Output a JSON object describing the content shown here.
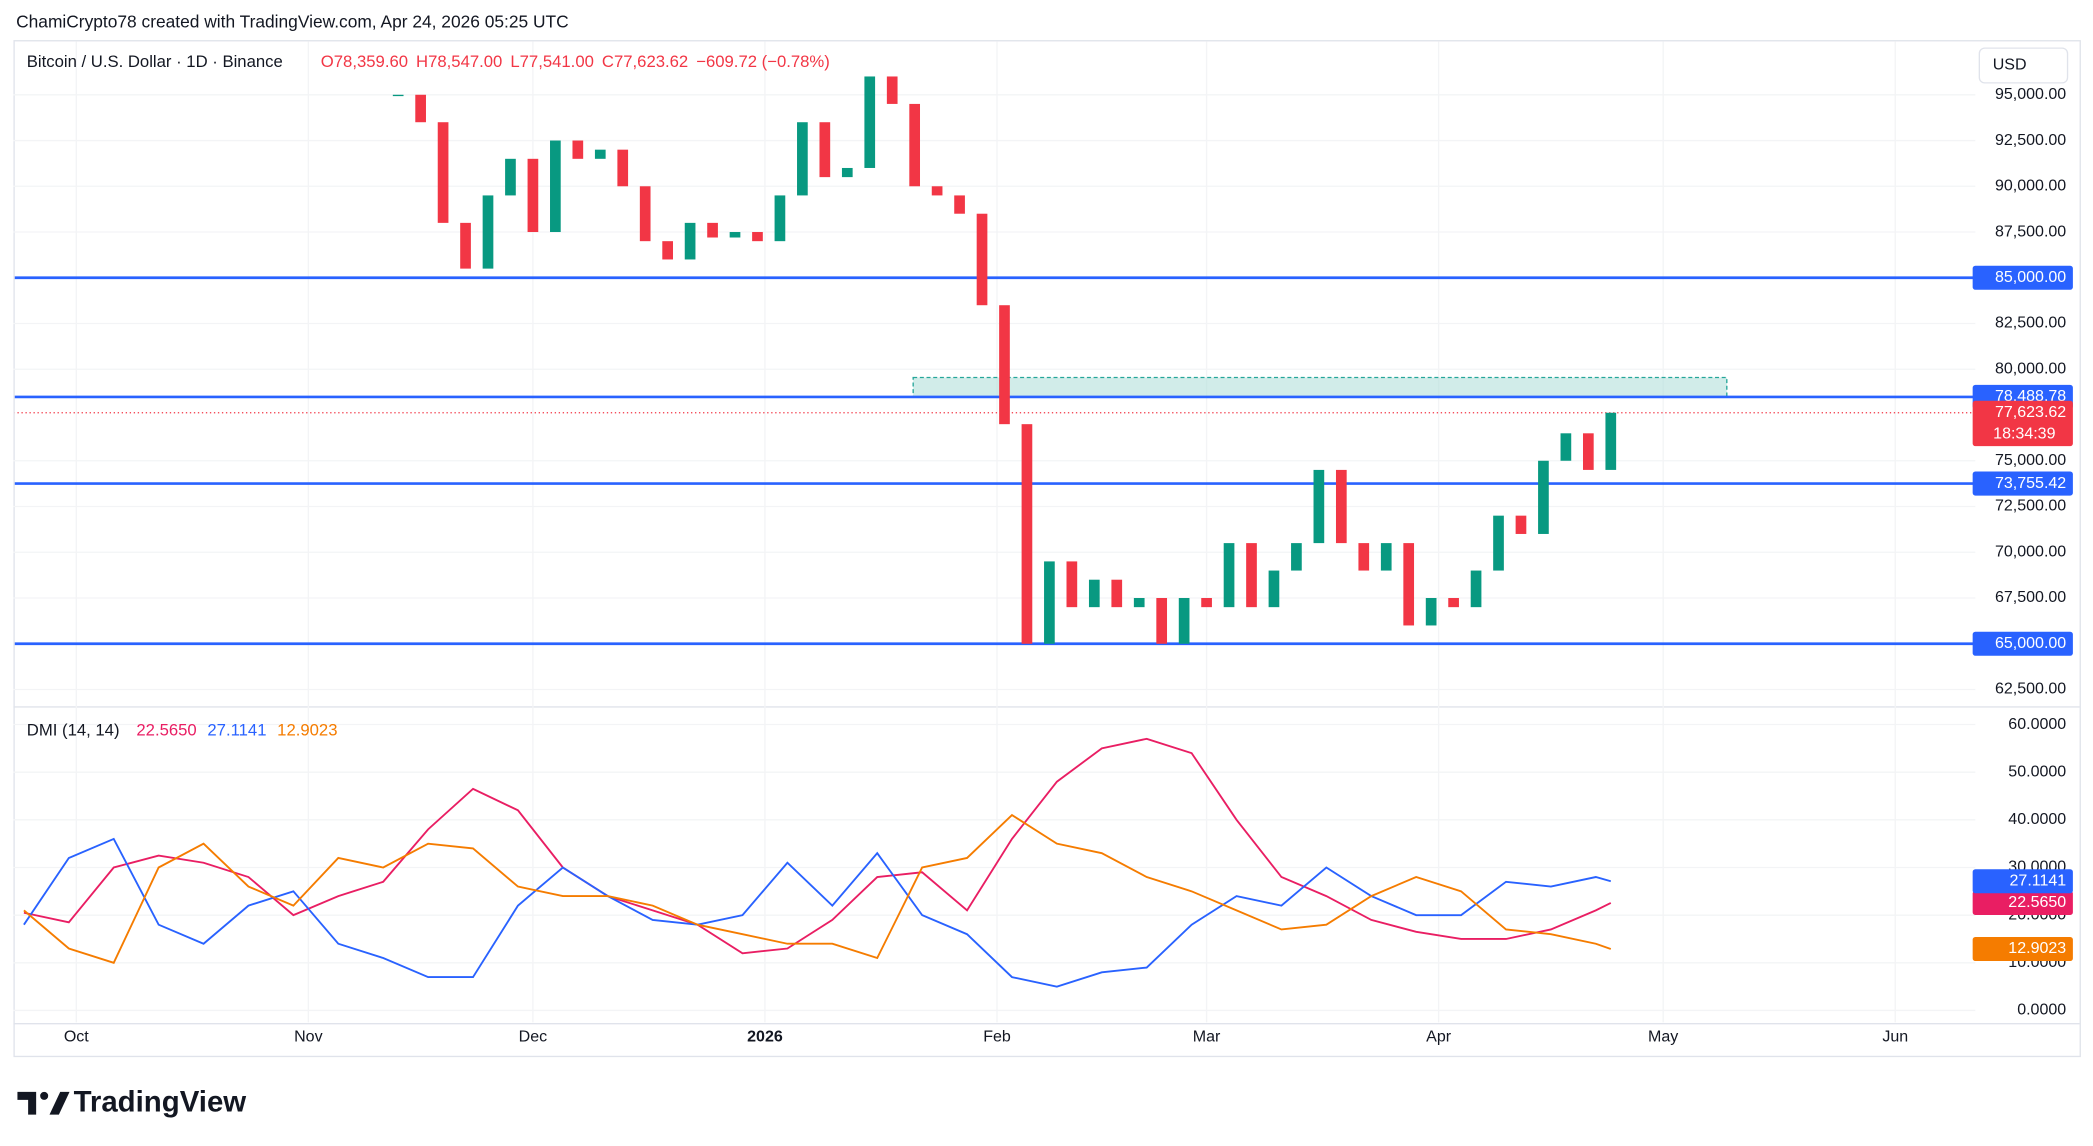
{
  "header": {
    "credit": "ChamiCrypto78 created with TradingView.com, Apr 24, 2026 05:25 UTC",
    "logo": "TradingView"
  },
  "chart_data": [
    {
      "type": "candlestick",
      "title": "Bitcoin / U.S. Dollar · 1D · Binance",
      "legend_values": [
        "O78,359.60",
        "H78,547.00",
        "L77,541.00",
        "C77,623.62",
        "−609.72 (−0.78%)"
      ],
      "currency": "USD",
      "up_color": "#089981",
      "down_color": "#f23645",
      "x": [
        43,
        46,
        49,
        52,
        55,
        58,
        61,
        64,
        67,
        70,
        73,
        76,
        79,
        82,
        85,
        88,
        91,
        94,
        97,
        100,
        103,
        106,
        109,
        112,
        115,
        118,
        121,
        124,
        127,
        130,
        133,
        136,
        139,
        142,
        145,
        148,
        151,
        154,
        157,
        160,
        163,
        166,
        169,
        172,
        175,
        178,
        181,
        184,
        187,
        190,
        193,
        196,
        199,
        202,
        205
      ],
      "values": [
        95000,
        93500,
        88000,
        85500,
        89500,
        91500,
        87500,
        92500,
        91500,
        92000,
        90000,
        87000,
        86000,
        88000,
        87200,
        87500,
        87000,
        89500,
        93500,
        90500,
        91000,
        96000,
        94500,
        90000,
        89500,
        88500,
        83500,
        77000,
        65000,
        69500,
        67000,
        68500,
        67000,
        67500,
        65000,
        67500,
        67000,
        70500,
        67000,
        69000,
        70500,
        74500,
        70500,
        69000,
        70500,
        66000,
        67500,
        67000,
        69000,
        72000,
        71000,
        75000,
        76500,
        74500,
        77623.62
      ],
      "xlim": [
        -8.4,
        253.7
      ],
      "ylim": [
        61618,
        97915
      ],
      "yticks": [
        {
          "value": 62500,
          "label": "62,500.00"
        },
        {
          "value": 67500,
          "label": "67,500.00"
        },
        {
          "value": 70000,
          "label": "70,000.00"
        },
        {
          "value": 72500,
          "label": "72,500.00"
        },
        {
          "value": 75000,
          "label": "75,000.00"
        },
        {
          "value": 80000,
          "label": "80,000.00"
        },
        {
          "value": 82500,
          "label": "82,500.00"
        },
        {
          "value": 87500,
          "label": "87,500.00"
        },
        {
          "value": 90000,
          "label": "90,000.00"
        },
        {
          "value": 92500,
          "label": "92,500.00"
        },
        {
          "value": 95000,
          "label": "95,000.00"
        }
      ],
      "levels": [
        {
          "value": 85000,
          "label": "85,000.00"
        },
        {
          "value": 78488.78,
          "label": "78,488.78"
        },
        {
          "value": 73755.42,
          "label": "73,755.42"
        },
        {
          "value": 65000,
          "label": "65,000.00"
        }
      ],
      "level_color": "#2962ff",
      "zone": {
        "xlim": [
          111.8,
          220.5
        ],
        "ylim": [
          78488.78,
          79550
        ],
        "color": "#b2dfdb"
      },
      "last_price": {
        "value": 77623.62,
        "label": "77,623.62",
        "countdown": "18:34:39",
        "color": "#f23645"
      }
    },
    {
      "type": "line",
      "title": "DMI (14, 14)",
      "x": [
        -7,
        -1,
        5,
        11,
        17,
        23,
        29,
        35,
        41,
        47,
        53,
        59,
        65,
        71,
        77,
        83,
        89,
        95,
        101,
        107,
        113,
        119,
        125,
        131,
        137,
        143,
        149,
        155,
        161,
        167,
        173,
        179,
        185,
        191,
        197,
        203,
        205
      ],
      "series": [
        {
          "color": "#e91e63",
          "last_label": "22.5650",
          "values": [
            20.5,
            18.5,
            30,
            32.5,
            31,
            28,
            20,
            24,
            27,
            38,
            46.5,
            42,
            30,
            24,
            21,
            18,
            12,
            13,
            19,
            28,
            29,
            21,
            36,
            48,
            55,
            57,
            54,
            40,
            28,
            24,
            19,
            16.5,
            15,
            15,
            17,
            21,
            22.565
          ]
        },
        {
          "color": "#2962ff",
          "last_label": "27.1141",
          "values": [
            18,
            32,
            36,
            18,
            14,
            22,
            25,
            14,
            11,
            7,
            7,
            22,
            30,
            24,
            19,
            18,
            20,
            31,
            22,
            33,
            20,
            16,
            7,
            5,
            8,
            9,
            18,
            24,
            22,
            30,
            24,
            20,
            20,
            27,
            26,
            28,
            27.1141
          ]
        },
        {
          "color": "#f57c00",
          "last_label": "12.9023",
          "values": [
            21,
            13,
            10,
            30,
            35,
            26,
            22,
            32,
            30,
            35,
            34,
            26,
            24,
            24,
            22,
            18,
            16,
            14,
            14,
            11,
            30,
            32,
            41,
            35,
            33,
            28,
            25,
            21,
            17,
            18,
            24,
            28,
            25,
            17,
            16,
            14,
            12.9023
          ]
        }
      ],
      "xlim": [
        -8.4,
        253.7
      ],
      "ylim": [
        -2.5,
        63.4
      ],
      "yticks": [
        {
          "value": 0,
          "label": "0.0000"
        },
        {
          "value": 10,
          "label": "10.0000"
        },
        {
          "value": 20,
          "label": "20.0000"
        },
        {
          "value": 30,
          "label": "30.0000"
        },
        {
          "value": 40,
          "label": "40.0000"
        },
        {
          "value": 50,
          "label": "50.0000"
        },
        {
          "value": 60,
          "label": "60.0000"
        }
      ],
      "xticks": [
        {
          "value": 0,
          "label": "Oct"
        },
        {
          "value": 31,
          "label": "Nov"
        },
        {
          "value": 61,
          "label": "Dec"
        },
        {
          "value": 92,
          "label": "2026"
        },
        {
          "value": 123,
          "label": "Feb"
        },
        {
          "value": 151,
          "label": "Mar"
        },
        {
          "value": 182,
          "label": "Apr"
        },
        {
          "value": 212,
          "label": "May"
        },
        {
          "value": 243,
          "label": "Jun"
        }
      ]
    }
  ]
}
